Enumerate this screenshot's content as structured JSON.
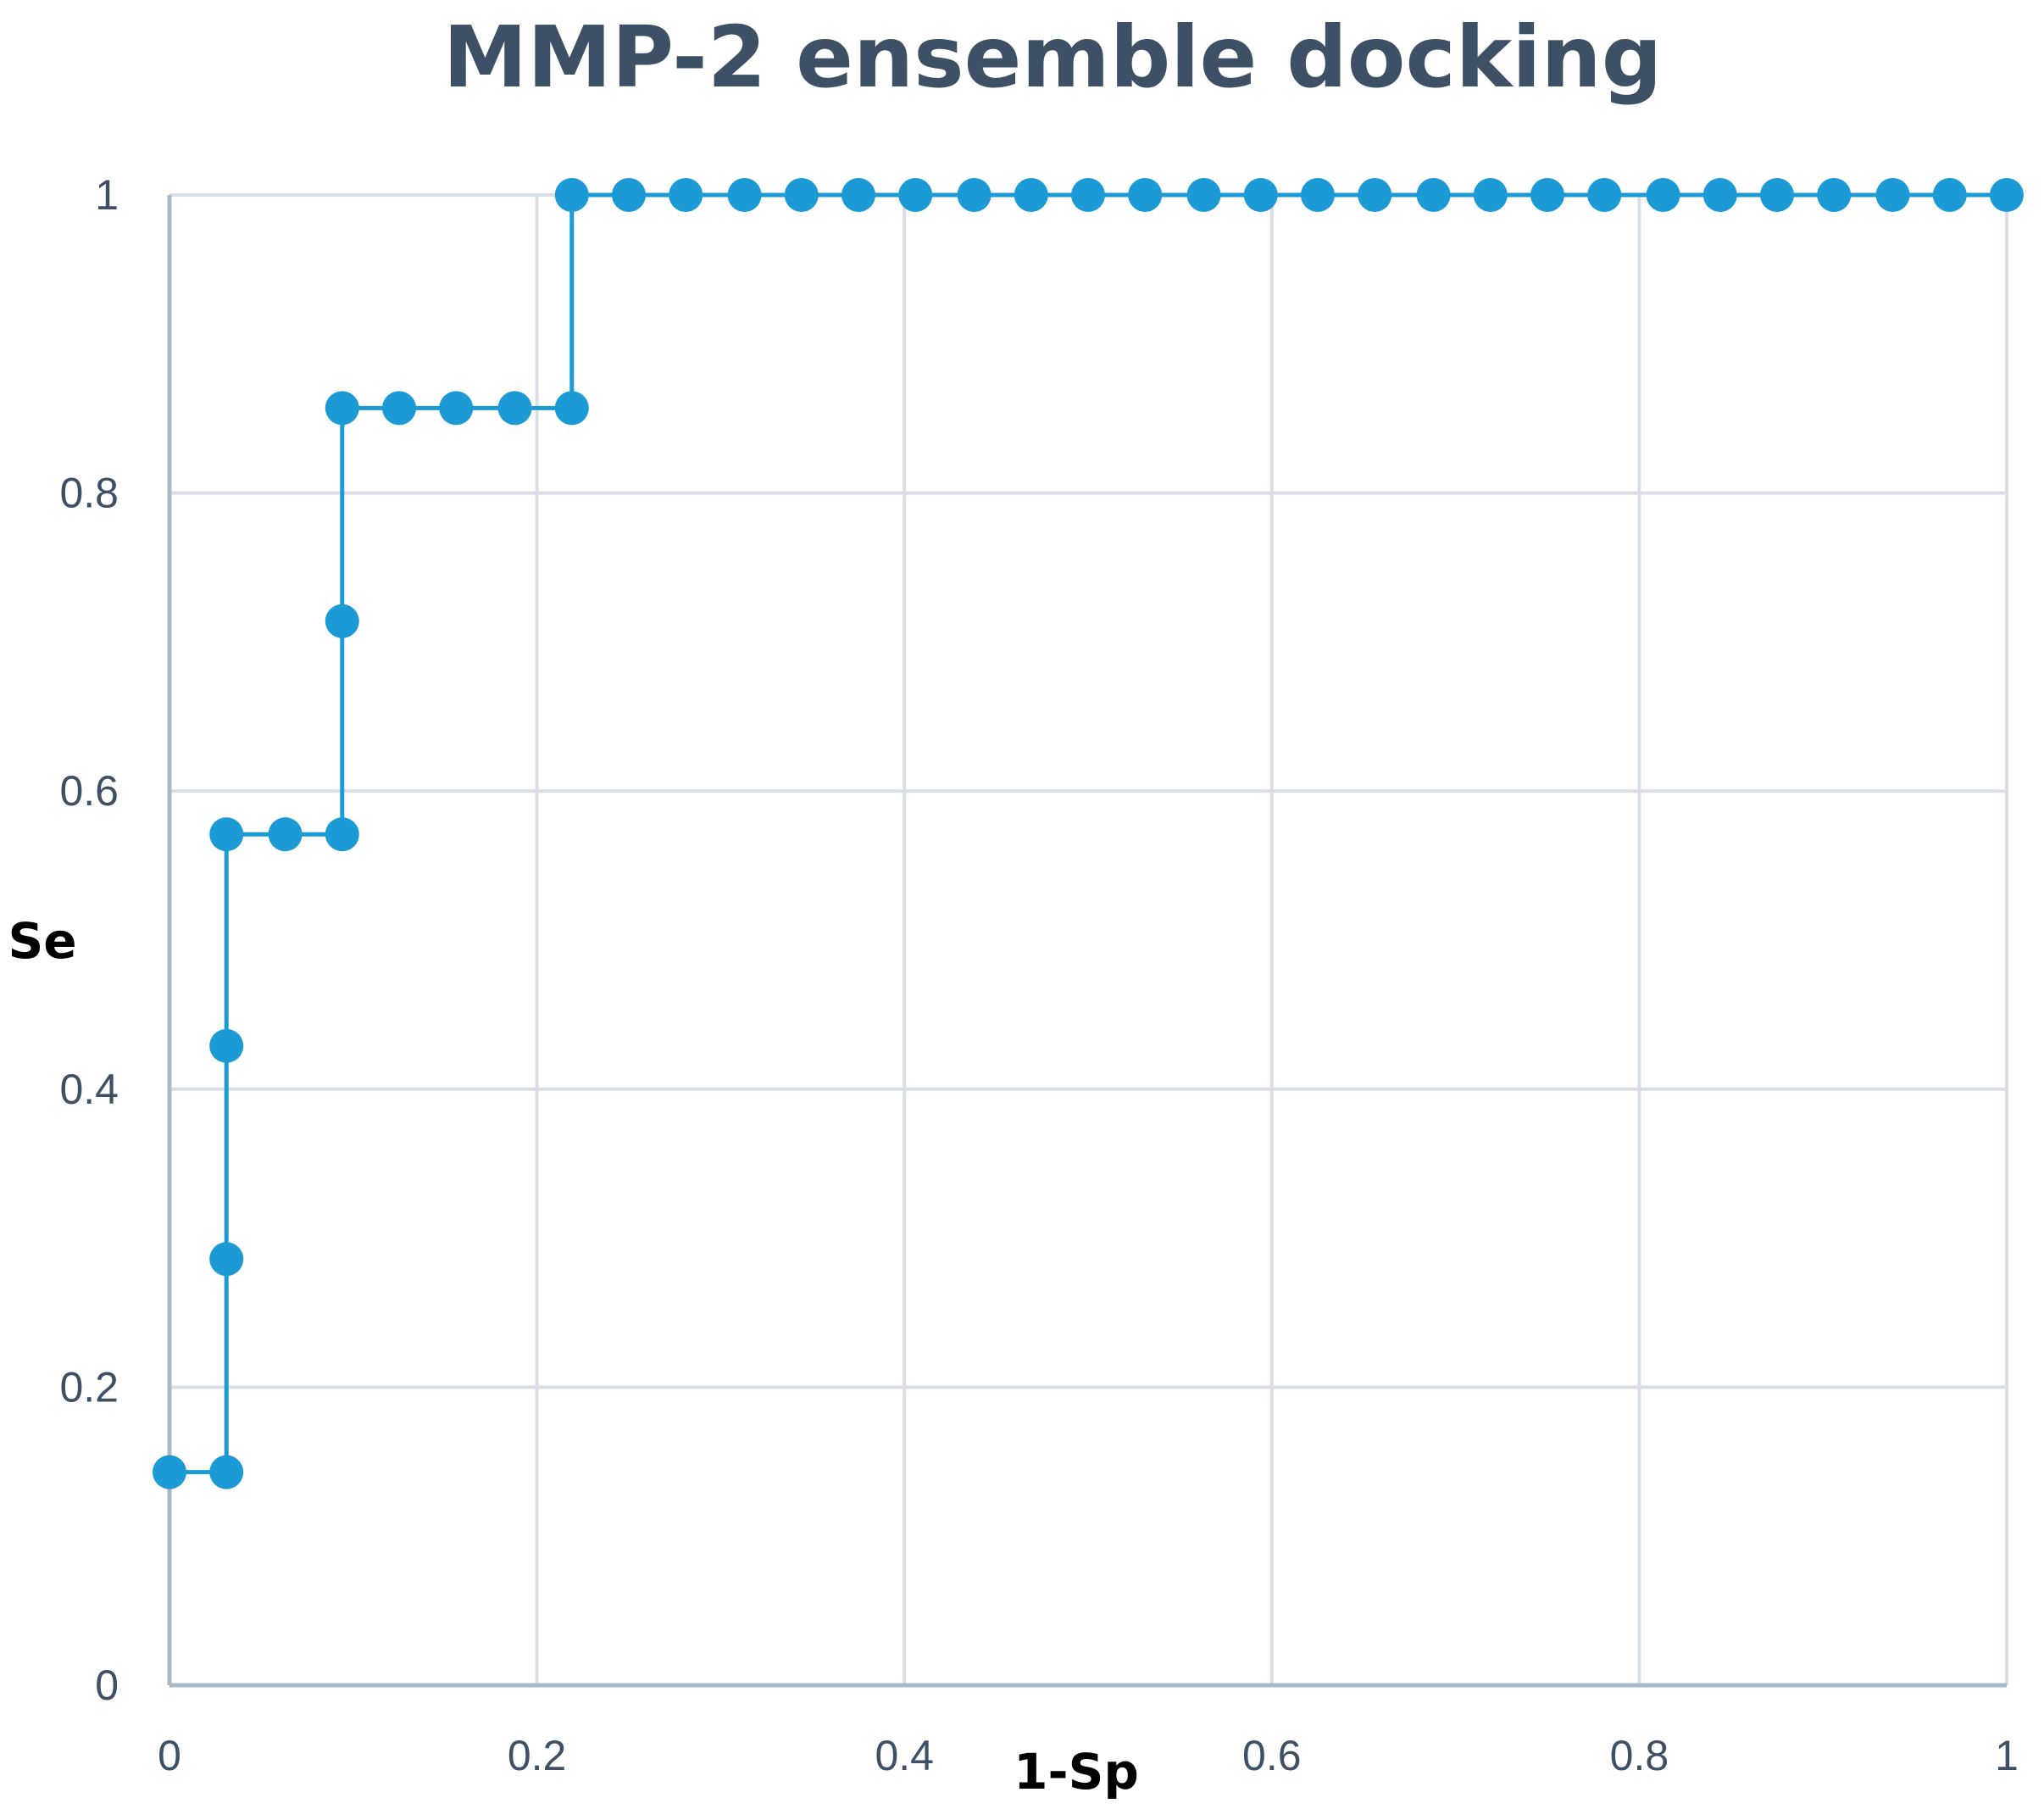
{
  "chart_data": {
    "type": "line",
    "title": "MMP-2 ensemble docking",
    "xlabel": "1-Sp",
    "ylabel": "Se",
    "xlim": [
      0,
      1
    ],
    "ylim": [
      0,
      1
    ],
    "x_ticks": [
      "0",
      "0.2",
      "0.4",
      "0.6",
      "0.8",
      "1"
    ],
    "y_ticks": [
      "0",
      "0.2",
      "0.4",
      "0.6",
      "0.8",
      "1"
    ],
    "grid": true,
    "legend": "none",
    "series": [
      {
        "color": "#1b9ad6",
        "marker": "circle",
        "points": [
          {
            "x": 0,
            "y": 0.143
          },
          {
            "x": 0.031,
            "y": 0.143
          },
          {
            "x": 0.031,
            "y": 0.286
          },
          {
            "x": 0.031,
            "y": 0.429
          },
          {
            "x": 0.031,
            "y": 0.571
          },
          {
            "x": 0.063,
            "y": 0.571
          },
          {
            "x": 0.094,
            "y": 0.571
          },
          {
            "x": 0.094,
            "y": 0.714
          },
          {
            "x": 0.094,
            "y": 0.857
          },
          {
            "x": 0.125,
            "y": 0.857
          },
          {
            "x": 0.156,
            "y": 0.857
          },
          {
            "x": 0.188,
            "y": 0.857
          },
          {
            "x": 0.219,
            "y": 0.857
          },
          {
            "x": 0.219,
            "y": 1
          },
          {
            "x": 0.25,
            "y": 1
          },
          {
            "x": 0.281,
            "y": 1
          },
          {
            "x": 0.313,
            "y": 1
          },
          {
            "x": 0.344,
            "y": 1
          },
          {
            "x": 0.375,
            "y": 1
          },
          {
            "x": 0.406,
            "y": 1
          },
          {
            "x": 0.438,
            "y": 1
          },
          {
            "x": 0.469,
            "y": 1
          },
          {
            "x": 0.5,
            "y": 1
          },
          {
            "x": 0.531,
            "y": 1
          },
          {
            "x": 0.563,
            "y": 1
          },
          {
            "x": 0.594,
            "y": 1
          },
          {
            "x": 0.625,
            "y": 1
          },
          {
            "x": 0.656,
            "y": 1
          },
          {
            "x": 0.688,
            "y": 1
          },
          {
            "x": 0.719,
            "y": 1
          },
          {
            "x": 0.75,
            "y": 1
          },
          {
            "x": 0.781,
            "y": 1
          },
          {
            "x": 0.813,
            "y": 1
          },
          {
            "x": 0.844,
            "y": 1
          },
          {
            "x": 0.875,
            "y": 1
          },
          {
            "x": 0.906,
            "y": 1
          },
          {
            "x": 0.938,
            "y": 1
          },
          {
            "x": 0.969,
            "y": 1
          },
          {
            "x": 1,
            "y": 1
          }
        ]
      }
    ]
  }
}
